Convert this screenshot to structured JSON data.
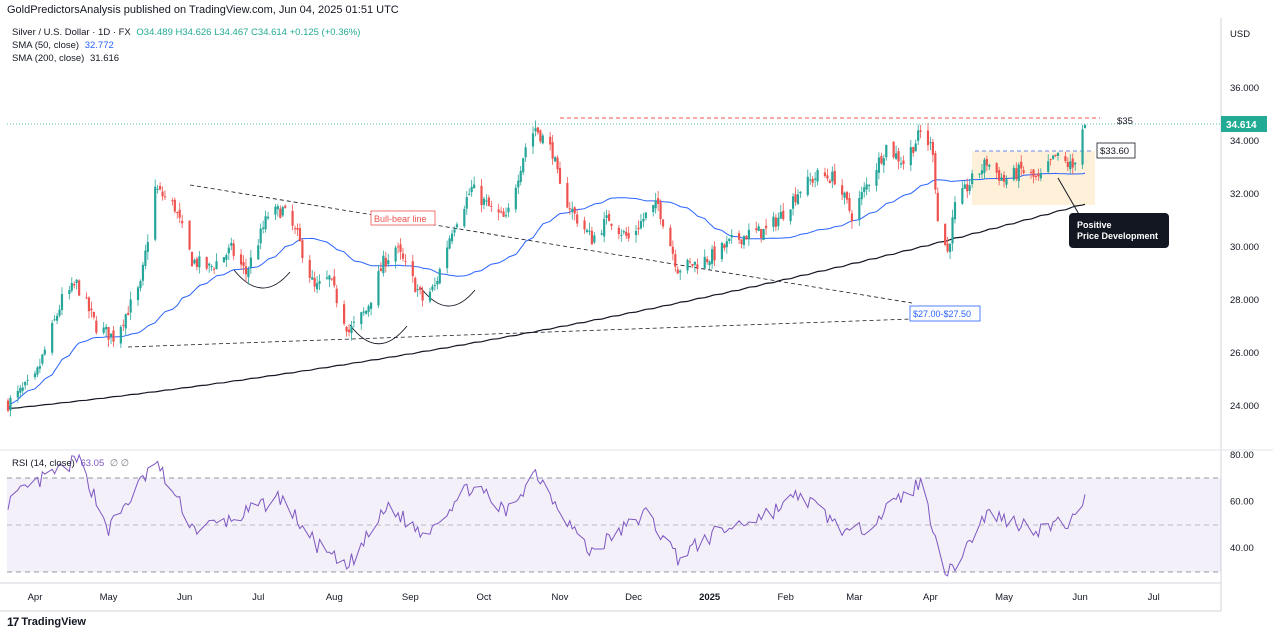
{
  "header": {
    "publisher_line": "GoldPredictorsAnalysis published on TradingView.com, Jun 04, 2025 01:51 UTC"
  },
  "legend": {
    "symbol": "Silver / U.S. Dollar · 1D · FX",
    "ohlc": "O34.489  H34.626  L34.467  C34.614  +0.125 (+0.36%)",
    "sma50_label": "SMA (50, close)",
    "sma50_value": "32.772",
    "sma200_label": "SMA (200, close)",
    "sma200_value": "31.616",
    "rsi_label": "RSI (14, close)",
    "rsi_value": "63.05",
    "rsi_extra": "∅  ∅"
  },
  "footer": {
    "brand": "TradingView",
    "logo": "17"
  },
  "currency": "USD",
  "price_badge": "34.614",
  "annotations": {
    "resistance": "$35",
    "support_box": "$33.60",
    "bull_bear": "Bull-bear line",
    "target_zone": "$27.00-$27.50",
    "callout": [
      "Positive",
      "Price Development"
    ]
  },
  "colors": {
    "up": "#26a69a",
    "down": "#ef5350",
    "sma50": "#2962ff",
    "sma200": "#131722",
    "rsi": "#7e57c2",
    "price_badge": "#22ab94"
  },
  "chart_data": [
    {
      "type": "candlestick",
      "title": "Silver / U.S. Dollar · 1D · FX",
      "y_axis_ticks": [
        "24.000",
        "26.000",
        "28.000",
        "30.000",
        "32.000",
        "34.000",
        "36.000"
      ],
      "x_axis_ticks": [
        "Apr",
        "May",
        "Jun",
        "Jul",
        "Aug",
        "Sep",
        "Oct",
        "Nov",
        "Dec",
        "2025",
        "Feb",
        "Mar",
        "Apr",
        "May",
        "Jun",
        "Jul"
      ],
      "ylim": [
        22.5,
        36.8
      ],
      "last_price": 34.614,
      "approx_close_path": [
        {
          "date": "2024-03-21",
          "close": 24.1
        },
        {
          "date": "2024-04-01",
          "close": 25.0
        },
        {
          "date": "2024-04-12",
          "close": 28.0
        },
        {
          "date": "2024-04-18",
          "close": 28.6
        },
        {
          "date": "2024-04-26",
          "close": 27.0
        },
        {
          "date": "2024-05-03",
          "close": 26.6
        },
        {
          "date": "2024-05-14",
          "close": 28.5
        },
        {
          "date": "2024-05-20",
          "close": 32.2
        },
        {
          "date": "2024-05-28",
          "close": 31.5
        },
        {
          "date": "2024-06-04",
          "close": 29.5
        },
        {
          "date": "2024-06-11",
          "close": 29.2
        },
        {
          "date": "2024-06-20",
          "close": 29.9
        },
        {
          "date": "2024-06-26",
          "close": 29.0
        },
        {
          "date": "2024-07-05",
          "close": 31.2
        },
        {
          "date": "2024-07-11",
          "close": 31.4
        },
        {
          "date": "2024-07-17",
          "close": 30.4
        },
        {
          "date": "2024-07-24",
          "close": 28.4
        },
        {
          "date": "2024-07-30",
          "close": 28.8
        },
        {
          "date": "2024-08-07",
          "close": 26.8
        },
        {
          "date": "2024-08-14",
          "close": 27.6
        },
        {
          "date": "2024-08-21",
          "close": 29.4
        },
        {
          "date": "2024-08-26",
          "close": 30.0
        },
        {
          "date": "2024-09-06",
          "close": 28.0
        },
        {
          "date": "2024-09-11",
          "close": 28.5
        },
        {
          "date": "2024-09-18",
          "close": 30.7
        },
        {
          "date": "2024-09-26",
          "close": 32.2
        },
        {
          "date": "2024-10-04",
          "close": 31.4
        },
        {
          "date": "2024-10-10",
          "close": 31.0
        },
        {
          "date": "2024-10-18",
          "close": 33.8
        },
        {
          "date": "2024-10-22",
          "close": 34.5
        },
        {
          "date": "2024-10-29",
          "close": 33.6
        },
        {
          "date": "2024-11-01",
          "close": 32.2
        },
        {
          "date": "2024-11-07",
          "close": 31.2
        },
        {
          "date": "2024-11-14",
          "close": 30.3
        },
        {
          "date": "2024-11-21",
          "close": 31.1
        },
        {
          "date": "2024-11-29",
          "close": 30.3
        },
        {
          "date": "2024-12-06",
          "close": 31.2
        },
        {
          "date": "2024-12-11",
          "close": 31.6
        },
        {
          "date": "2024-12-19",
          "close": 29.2
        },
        {
          "date": "2024-12-27",
          "close": 29.4
        },
        {
          "date": "2025-01-03",
          "close": 29.7
        },
        {
          "date": "2025-01-10",
          "close": 30.2
        },
        {
          "date": "2025-01-17",
          "close": 30.5
        },
        {
          "date": "2025-01-24",
          "close": 30.6
        },
        {
          "date": "2025-01-31",
          "close": 31.3
        },
        {
          "date": "2025-02-07",
          "close": 32.2
        },
        {
          "date": "2025-02-14",
          "close": 32.7
        },
        {
          "date": "2025-02-21",
          "close": 32.6
        },
        {
          "date": "2025-02-28",
          "close": 31.2
        },
        {
          "date": "2025-03-07",
          "close": 32.5
        },
        {
          "date": "2025-03-14",
          "close": 33.8
        },
        {
          "date": "2025-03-21",
          "close": 33.2
        },
        {
          "date": "2025-03-28",
          "close": 34.3
        },
        {
          "date": "2025-04-02",
          "close": 33.7
        },
        {
          "date": "2025-04-04",
          "close": 31.0
        },
        {
          "date": "2025-04-08",
          "close": 29.8
        },
        {
          "date": "2025-04-11",
          "close": 31.5
        },
        {
          "date": "2025-04-17",
          "close": 32.4
        },
        {
          "date": "2025-04-24",
          "close": 33.2
        },
        {
          "date": "2025-05-01",
          "close": 32.5
        },
        {
          "date": "2025-05-08",
          "close": 32.9
        },
        {
          "date": "2025-05-15",
          "close": 32.5
        },
        {
          "date": "2025-05-22",
          "close": 33.4
        },
        {
          "date": "2025-05-29",
          "close": 33.0
        },
        {
          "date": "2025-06-02",
          "close": 34.5
        },
        {
          "date": "2025-06-03",
          "close": 34.6
        }
      ],
      "sma50_last": 32.772,
      "sma200_last": 31.616,
      "horizontal_levels": [
        {
          "label": "$35",
          "value": 34.8
        },
        {
          "label": "$33.60",
          "value": 33.6
        }
      ],
      "trendlines": [
        "Bull-bear line (descending from ~32.3 in May 2024 to ~27.8 in Apr 2025)",
        "Ascending support from ~26.2 (May 2024) to ~27.2 (Apr 2025)"
      ]
    },
    {
      "type": "line",
      "title": "RSI (14, close)",
      "y_axis_ticks": [
        "40.00",
        "60.00",
        "80.00"
      ],
      "ylim": [
        27,
        82
      ],
      "bands": [
        30,
        50,
        70
      ],
      "last_value": 63.05,
      "approx_path": [
        {
          "date": "2024-03-21",
          "value": 60
        },
        {
          "date": "2024-04-05",
          "value": 70
        },
        {
          "date": "2024-04-19",
          "value": 78
        },
        {
          "date": "2024-05-01",
          "value": 48
        },
        {
          "date": "2024-05-20",
          "value": 77
        },
        {
          "date": "2024-06-05",
          "value": 48
        },
        {
          "date": "2024-06-20",
          "value": 52
        },
        {
          "date": "2024-07-10",
          "value": 62
        },
        {
          "date": "2024-07-24",
          "value": 42
        },
        {
          "date": "2024-08-06",
          "value": 31
        },
        {
          "date": "2024-08-23",
          "value": 58
        },
        {
          "date": "2024-09-06",
          "value": 46
        },
        {
          "date": "2024-09-26",
          "value": 67
        },
        {
          "date": "2024-10-10",
          "value": 55
        },
        {
          "date": "2024-10-22",
          "value": 73
        },
        {
          "date": "2024-11-13",
          "value": 38
        },
        {
          "date": "2024-12-06",
          "value": 55
        },
        {
          "date": "2024-12-19",
          "value": 36
        },
        {
          "date": "2025-01-03",
          "value": 46
        },
        {
          "date": "2025-01-27",
          "value": 56
        },
        {
          "date": "2025-02-07",
          "value": 63
        },
        {
          "date": "2025-02-28",
          "value": 45
        },
        {
          "date": "2025-03-28",
          "value": 68
        },
        {
          "date": "2025-04-08",
          "value": 28
        },
        {
          "date": "2025-04-24",
          "value": 55
        },
        {
          "date": "2025-05-15",
          "value": 48
        },
        {
          "date": "2025-05-30",
          "value": 52
        },
        {
          "date": "2025-06-03",
          "value": 63
        }
      ]
    }
  ]
}
